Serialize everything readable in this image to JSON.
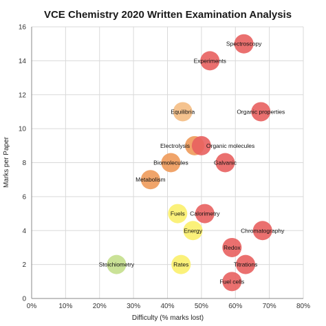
{
  "chart_data": {
    "type": "scatter",
    "title": "VCE Chemistry 2020 Written Examination Analysis",
    "xlabel": "Difficulty (% marks lost)",
    "ylabel": "Marks per Paper",
    "xlim": [
      0,
      80
    ],
    "ylim": [
      0,
      16
    ],
    "x_ticks": [
      "0%",
      "10%",
      "20%",
      "30%",
      "40%",
      "50%",
      "60%",
      "70%",
      "80%"
    ],
    "x_tick_values": [
      0,
      10,
      20,
      30,
      40,
      50,
      60,
      70,
      80
    ],
    "y_ticks": [
      "0",
      "2",
      "4",
      "6",
      "8",
      "10",
      "12",
      "14",
      "16"
    ],
    "y_tick_values": [
      0,
      2,
      4,
      6,
      8,
      10,
      12,
      14,
      16
    ],
    "grid": "on",
    "colors": {
      "red": "#e8605f",
      "orange": "#ee9a5a",
      "lightorange": "#f4bc83",
      "yellow": "#fbf06c",
      "green": "#c4df8c"
    },
    "points": [
      {
        "label": "Spectroscopy",
        "x": 62.5,
        "y": 15,
        "color": "red",
        "label_pos": "on"
      },
      {
        "label": "Experiments",
        "x": 52.5,
        "y": 14,
        "color": "red",
        "label_pos": "on"
      },
      {
        "label": "Equilibria",
        "x": 44.5,
        "y": 11,
        "color": "lightorange",
        "label_pos": "on"
      },
      {
        "label": "Organic properties",
        "x": 67.5,
        "y": 11,
        "color": "red",
        "label_pos": "on"
      },
      {
        "label": "Electrolysis",
        "x": 48,
        "y": 9,
        "color": "orange",
        "label_pos": "left"
      },
      {
        "label": "Organic molecules",
        "x": 50,
        "y": 9,
        "color": "red",
        "label_pos": "right"
      },
      {
        "label": "Biomolecules",
        "x": 41,
        "y": 8,
        "color": "orange",
        "label_pos": "on"
      },
      {
        "label": "Galvanic",
        "x": 57,
        "y": 8,
        "color": "red",
        "label_pos": "on"
      },
      {
        "label": "Metabolism",
        "x": 35,
        "y": 7,
        "color": "orange",
        "label_pos": "on"
      },
      {
        "label": "Fuels",
        "x": 43,
        "y": 5,
        "color": "yellow",
        "label_pos": "on"
      },
      {
        "label": "Calorimetry",
        "x": 51,
        "y": 5,
        "color": "red",
        "label_pos": "on"
      },
      {
        "label": "Energy",
        "x": 47.5,
        "y": 4,
        "color": "yellow",
        "label_pos": "on"
      },
      {
        "label": "Chromatography",
        "x": 68,
        "y": 4,
        "color": "red",
        "label_pos": "on"
      },
      {
        "label": "Redox",
        "x": 59,
        "y": 3,
        "color": "red",
        "label_pos": "on"
      },
      {
        "label": "Stoichiometry",
        "x": 25,
        "y": 2,
        "color": "green",
        "label_pos": "on"
      },
      {
        "label": "Rates",
        "x": 44,
        "y": 2,
        "color": "yellow",
        "label_pos": "on"
      },
      {
        "label": "Titrations",
        "x": 63,
        "y": 2,
        "color": "red",
        "label_pos": "on"
      },
      {
        "label": "Fuel cells",
        "x": 59,
        "y": 1,
        "color": "red",
        "label_pos": "on"
      }
    ]
  }
}
